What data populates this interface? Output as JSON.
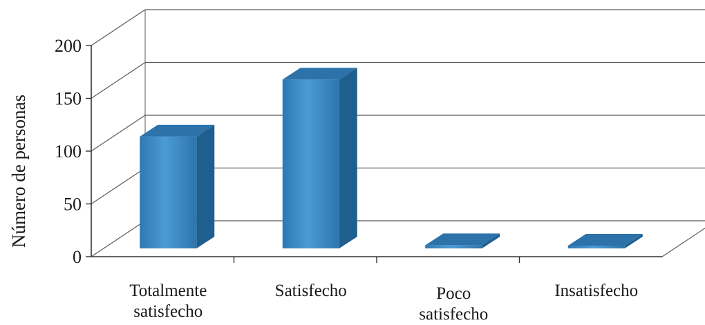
{
  "chart_data": {
    "type": "bar",
    "style": "3d-column",
    "categories": [
      [
        "Totalmente",
        "satisfecho"
      ],
      [
        "Satisfecho"
      ],
      [
        "Poco",
        "satisfecho"
      ],
      [
        "Insatisfecho"
      ]
    ],
    "values": [
      106,
      160,
      3,
      1
    ],
    "ylabel": "Número de personas",
    "xlabel": "",
    "title": "",
    "ylim": [
      0,
      200
    ],
    "yticks": [
      0,
      50,
      100,
      150,
      200
    ],
    "grid": true,
    "legend": "none",
    "colors": {
      "bar_front": "#3a87c3",
      "bar_side": "#1f5f8f",
      "bar_top": "#2d73aa",
      "grid": "#5a5a5a",
      "axis": "#333333"
    }
  }
}
